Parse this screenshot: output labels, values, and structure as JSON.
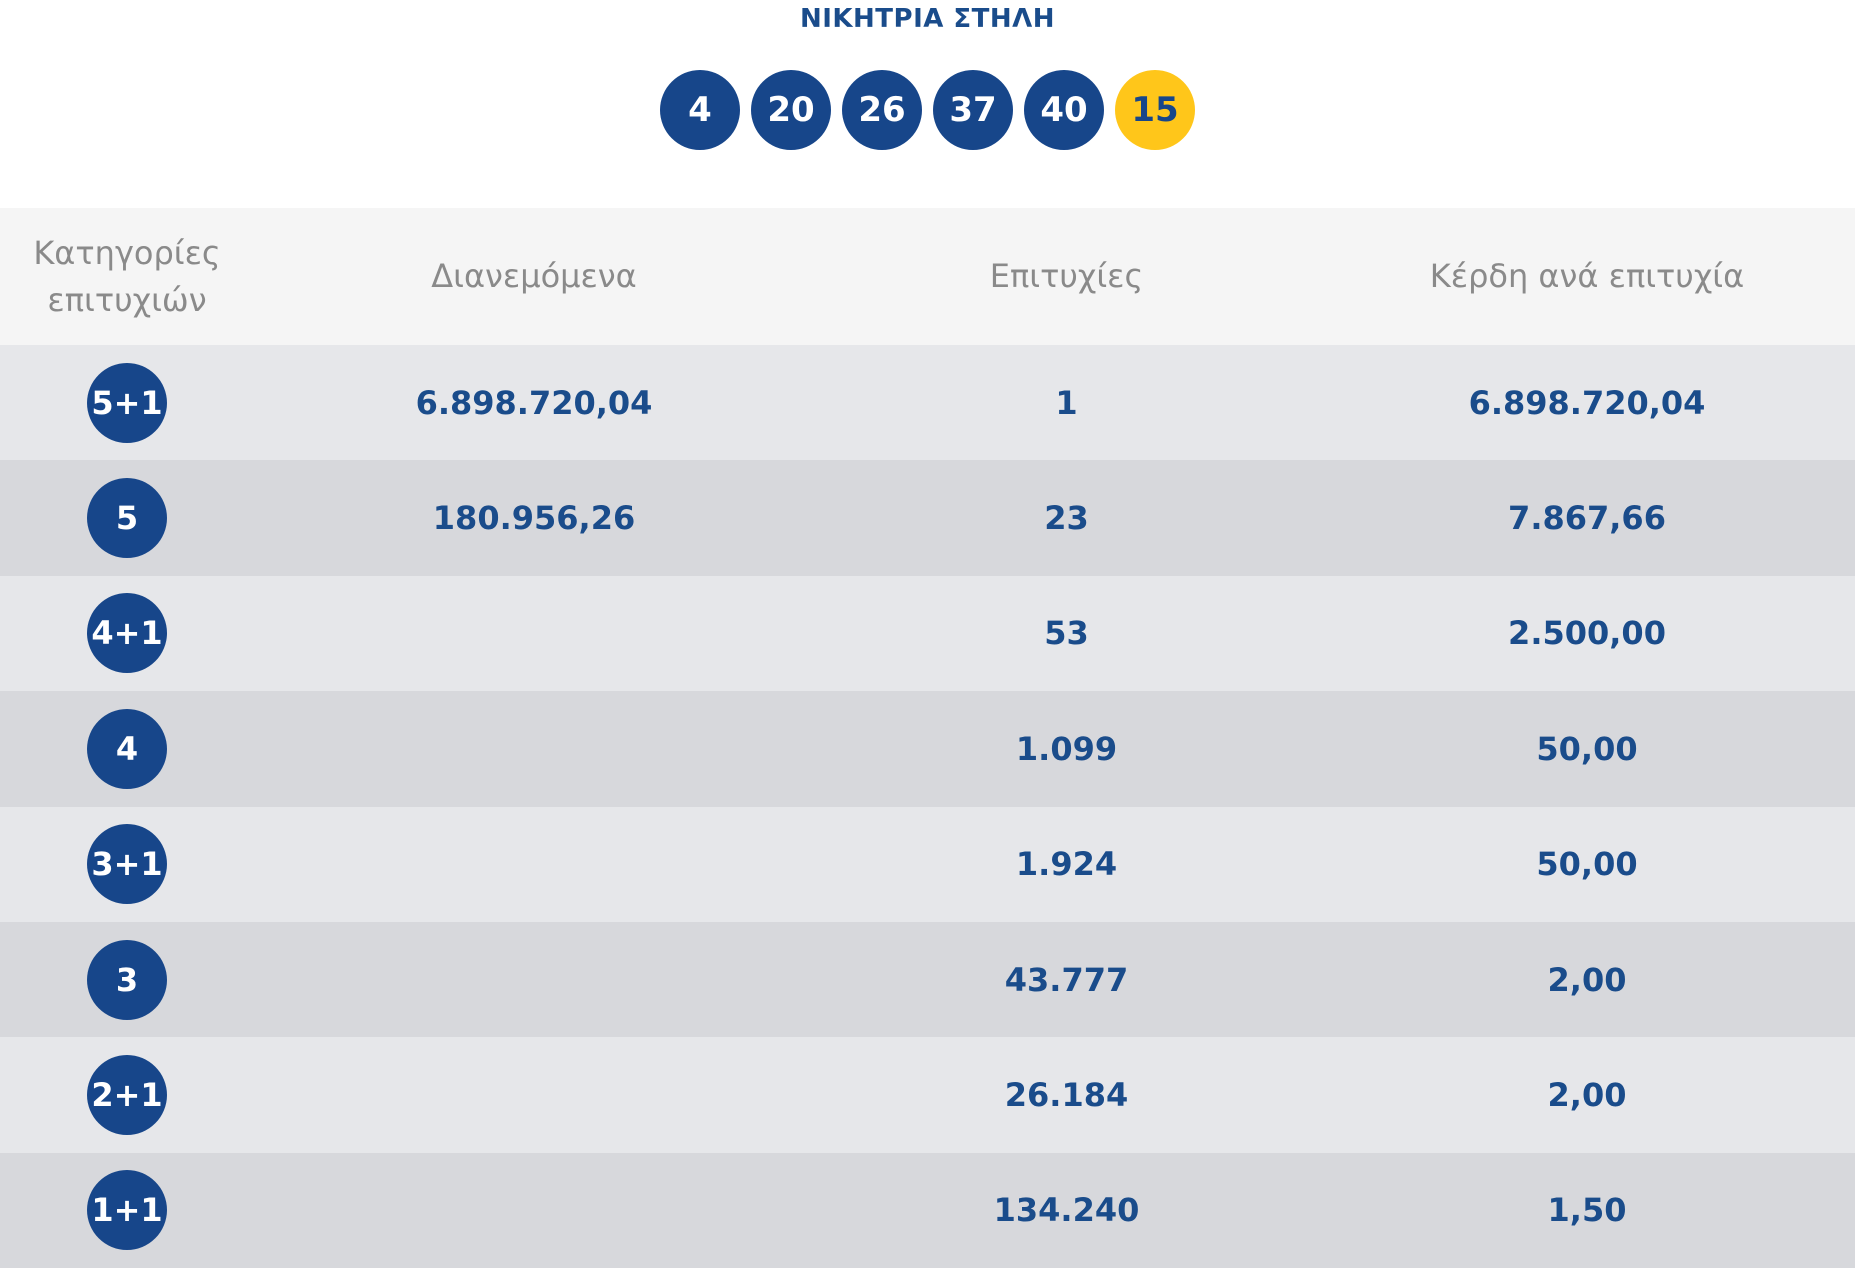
{
  "winning": {
    "title": "ΝΙΚΗΤΡΙΑ ΣΤΗΛΗ",
    "numbers": [
      "4",
      "20",
      "26",
      "37",
      "40"
    ],
    "bonus": "15"
  },
  "table": {
    "headers": {
      "category_line1": "Κατηγορίες",
      "category_line2": "επιτυχιών",
      "distributed": "Διανεμόμενα",
      "winners": "Επιτυχίες",
      "prize_per_winner": "Κέρδη ανά επιτυχία"
    },
    "rows": [
      {
        "category": "5+1",
        "distributed": "6.898.720,04",
        "winners": "1",
        "prize": "6.898.720,04"
      },
      {
        "category": "5",
        "distributed": "180.956,26",
        "winners": "23",
        "prize": "7.867,66"
      },
      {
        "category": "4+1",
        "distributed": "",
        "winners": "53",
        "prize": "2.500,00"
      },
      {
        "category": "4",
        "distributed": "",
        "winners": "1.099",
        "prize": "50,00"
      },
      {
        "category": "3+1",
        "distributed": "",
        "winners": "1.924",
        "prize": "50,00"
      },
      {
        "category": "3",
        "distributed": "",
        "winners": "43.777",
        "prize": "2,00"
      },
      {
        "category": "2+1",
        "distributed": "",
        "winners": "26.184",
        "prize": "2,00"
      },
      {
        "category": "1+1",
        "distributed": "",
        "winners": "134.240",
        "prize": "1,50"
      }
    ]
  },
  "colors": {
    "primary_blue": "#17468a",
    "bonus_yellow": "#ffc61a",
    "header_bg": "#f5f5f5",
    "row_light": "#e6e7ea",
    "row_dark": "#d7d8dc"
  }
}
